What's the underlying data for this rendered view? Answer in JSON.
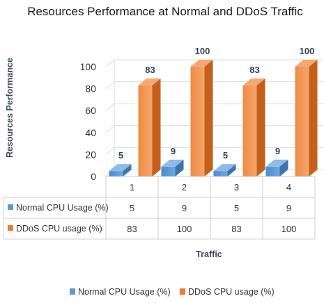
{
  "chart_data": {
    "type": "bar",
    "title": "Resources Performance  at Normal and DDoS Traffic",
    "xlabel": "Traffic",
    "ylabel": "Resources Performance",
    "categories": [
      "1",
      "2",
      "3",
      "4"
    ],
    "ylim": [
      0,
      100
    ],
    "yticks": [
      0,
      20,
      40,
      60,
      80,
      100
    ],
    "grid": true,
    "legend": "bottom",
    "data_table": true,
    "series": [
      {
        "name": "Normal CPU Usage (%)",
        "values": [
          5,
          9,
          5,
          9
        ],
        "color": "#5b9bd5"
      },
      {
        "name": "DDoS CPU usage (%)",
        "values": [
          83,
          100,
          83,
          100
        ],
        "color": "#ed7d31"
      }
    ]
  }
}
